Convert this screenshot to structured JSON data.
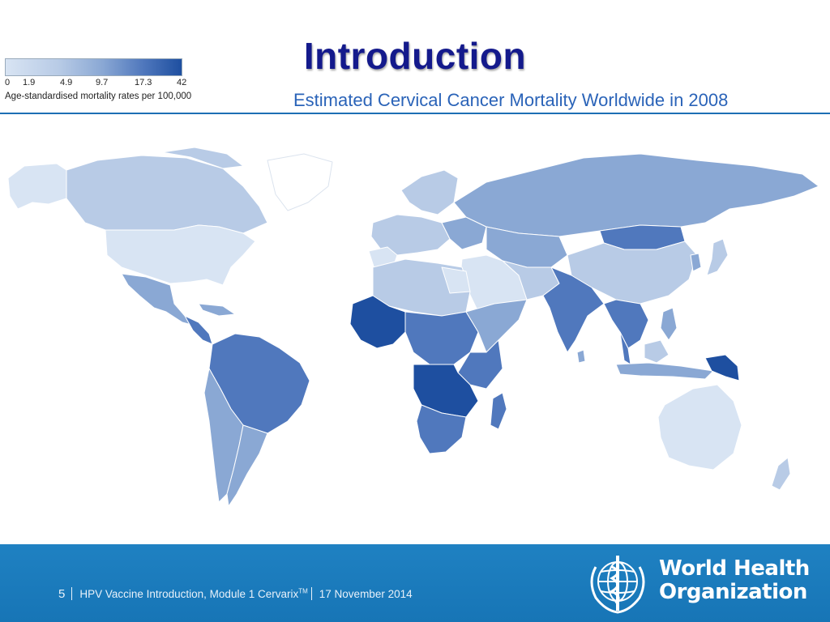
{
  "slide": {
    "title": "Introduction",
    "map_title": "Estimated Cervical Cancer Mortality Worldwide in 2008"
  },
  "legend": {
    "ticks": [
      "0",
      "1.9",
      "4.9",
      "9.7",
      "17.3",
      "42"
    ],
    "caption": "Age-standardised mortality rates per 100,000",
    "colors": [
      "#d8e4f3",
      "#b8cbe6",
      "#8aa8d4",
      "#5078bd",
      "#1e4fa0"
    ]
  },
  "footer": {
    "page_number": "5",
    "module_text": "HPV Vaccine Introduction, Module 1 Cervarix",
    "trademark": "TM",
    "date": "17 November 2014",
    "org_line1": "World Health",
    "org_line2": "Organization"
  },
  "colors": {
    "title": "#141a8c",
    "subtitle": "#2a63b8",
    "footer_bg": "#1f81c2"
  }
}
